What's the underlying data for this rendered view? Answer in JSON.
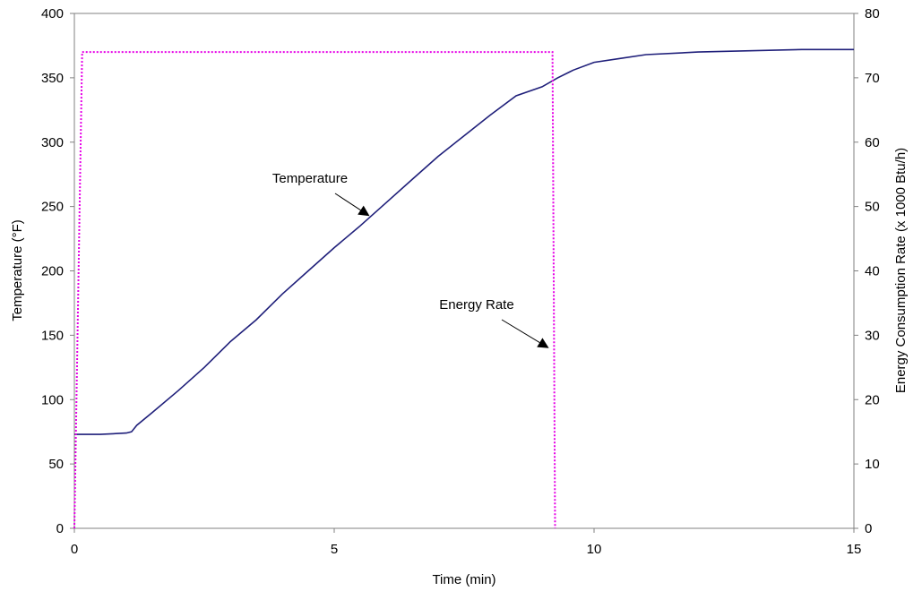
{
  "chart_data": {
    "type": "line",
    "title": "",
    "xlabel": "Time (min)",
    "ylabel": "Temperature (°F)",
    "y2label": "Energy Consumption Rate (x 1000 Btu/h)",
    "xlim": [
      0,
      15
    ],
    "ylim": [
      0,
      400
    ],
    "y2lim": [
      0,
      80
    ],
    "x_ticks": [
      0,
      5,
      10,
      15
    ],
    "y_ticks": [
      0,
      50,
      100,
      150,
      200,
      250,
      300,
      350,
      400
    ],
    "y2_ticks": [
      0,
      10,
      20,
      30,
      40,
      50,
      60,
      70,
      80
    ],
    "grid": false,
    "legend": "none",
    "series": [
      {
        "name": "Temperature",
        "axis": "left",
        "color": "#1f1f7a",
        "style": "solid",
        "x": [
          0,
          0.5,
          1.0,
          1.1,
          1.2,
          1.5,
          2.0,
          2.5,
          3.0,
          3.5,
          4.0,
          4.5,
          5.0,
          5.5,
          6.0,
          6.5,
          7.0,
          7.5,
          8.0,
          8.5,
          9.0,
          9.3,
          9.6,
          10.0,
          10.5,
          11.0,
          12.0,
          13.0,
          14.0,
          15.0
        ],
        "y": [
          73,
          73,
          74,
          75,
          80,
          90,
          107,
          125,
          145,
          162,
          182,
          200,
          218,
          235,
          253,
          271,
          289,
          305,
          321,
          336,
          343,
          350,
          356,
          362,
          365,
          368,
          370,
          371,
          372,
          372
        ]
      },
      {
        "name": "Energy Rate",
        "axis": "right",
        "color": "#e600e6",
        "style": "dotted",
        "x": [
          0,
          0.15,
          9.2,
          9.25
        ],
        "y": [
          0,
          74,
          74,
          0
        ]
      }
    ],
    "annotations": [
      {
        "text": "Temperature",
        "series": "Temperature"
      },
      {
        "text": "Energy Rate",
        "series": "Energy Rate"
      }
    ]
  }
}
